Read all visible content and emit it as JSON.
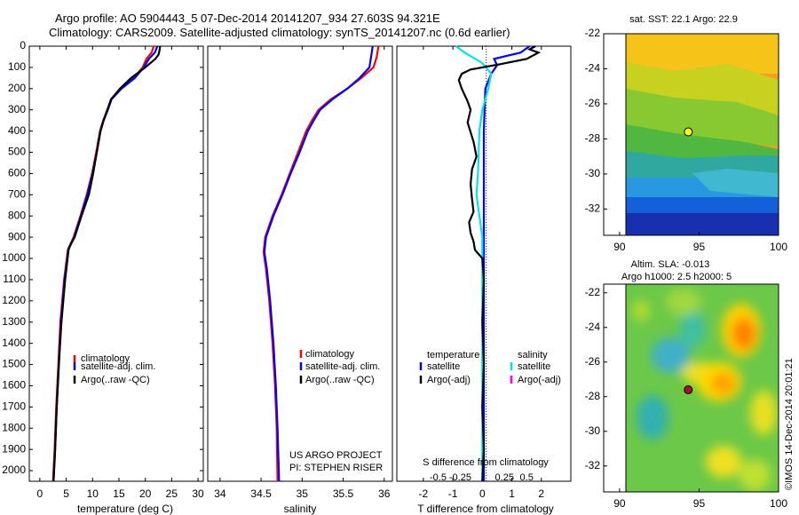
{
  "header": {
    "line1": "Argo profile: AO 5904443_5 07-Dec-2014 20141207_934 27.603S 94.321E",
    "line2": "Climatology: CARS2009. Satellite-adjusted climatology: synTS_20141207.nc (0.6d earlier)"
  },
  "colors": {
    "climatology": "#ff0000",
    "satellite": "#0000ff",
    "argo": "#000000",
    "t_satellite": "#0000ff",
    "t_argo": "#000000",
    "s_satellite": "#00e5e5",
    "s_argo": "#ff00ff"
  },
  "chart_data": [
    {
      "id": "temperature",
      "type": "line",
      "xlabel": "temperature (deg C)",
      "xlim": [
        -2,
        31
      ],
      "ylim": [
        2050,
        0
      ],
      "xticks": [
        0,
        5,
        10,
        15,
        20,
        25,
        30
      ],
      "yticks": [
        0,
        100,
        200,
        300,
        400,
        500,
        600,
        700,
        800,
        900,
        1000,
        1100,
        1200,
        1300,
        1400,
        1500,
        1600,
        1700,
        1800,
        1900,
        2000
      ],
      "legend": [
        "climatology",
        "satellite-adj. clim.",
        "Argo(..raw -QC)"
      ],
      "series": [
        {
          "name": "climatology",
          "color": "#ff0000",
          "points": [
            [
              21.6,
              0
            ],
            [
              21.2,
              30
            ],
            [
              20.2,
              60
            ],
            [
              19.5,
              100
            ],
            [
              17.8,
              150
            ],
            [
              15.3,
              200
            ],
            [
              13.5,
              250
            ],
            [
              12.8,
              300
            ],
            [
              12.0,
              350
            ],
            [
              11.4,
              400
            ],
            [
              10.7,
              500
            ],
            [
              9.9,
              600
            ],
            [
              8.9,
              700
            ],
            [
              7.7,
              800
            ],
            [
              6.4,
              900
            ],
            [
              5.3,
              960
            ],
            [
              4.6,
              1100
            ],
            [
              3.9,
              1300
            ],
            [
              3.5,
              1500
            ],
            [
              3.1,
              1700
            ],
            [
              2.8,
              1900
            ],
            [
              2.5,
              2050
            ]
          ]
        },
        {
          "name": "satellite-adj. clim.",
          "color": "#0000ff",
          "points": [
            [
              22.3,
              0
            ],
            [
              21.8,
              30
            ],
            [
              20.7,
              60
            ],
            [
              19.7,
              100
            ],
            [
              18.0,
              150
            ],
            [
              15.5,
              200
            ],
            [
              13.6,
              250
            ],
            [
              12.9,
              300
            ],
            [
              12.1,
              350
            ],
            [
              11.5,
              400
            ],
            [
              10.8,
              500
            ],
            [
              10.0,
              600
            ],
            [
              9.0,
              700
            ],
            [
              7.8,
              800
            ],
            [
              6.5,
              900
            ],
            [
              5.4,
              960
            ],
            [
              4.7,
              1100
            ],
            [
              4.0,
              1300
            ],
            [
              3.6,
              1500
            ],
            [
              3.2,
              1700
            ],
            [
              2.9,
              1900
            ],
            [
              2.6,
              2050
            ]
          ]
        },
        {
          "name": "Argo(..raw -QC)",
          "color": "#000000",
          "points": [
            [
              22.8,
              0
            ],
            [
              22.7,
              20
            ],
            [
              22.5,
              40
            ],
            [
              21.9,
              60
            ],
            [
              20.0,
              100
            ],
            [
              17.3,
              150
            ],
            [
              15.2,
              200
            ],
            [
              13.5,
              250
            ],
            [
              12.8,
              300
            ],
            [
              12.1,
              350
            ],
            [
              11.5,
              400
            ],
            [
              10.8,
              500
            ],
            [
              10.1,
              600
            ],
            [
              9.3,
              700
            ],
            [
              7.9,
              800
            ],
            [
              6.6,
              900
            ],
            [
              5.5,
              950
            ],
            [
              4.8,
              1100
            ],
            [
              4.1,
              1300
            ],
            [
              3.6,
              1500
            ],
            [
              3.2,
              1700
            ],
            [
              2.9,
              1900
            ],
            [
              2.6,
              2050
            ]
          ]
        }
      ]
    },
    {
      "id": "salinity",
      "type": "line",
      "xlabel": "salinity",
      "xlim": [
        33.85,
        36.1
      ],
      "ylim": [
        2050,
        0
      ],
      "xticks": [
        34,
        34.5,
        35,
        35.5,
        36
      ],
      "legend": [
        "climatology",
        "satellite-adj. clim.",
        "Argo(..raw -QC)"
      ],
      "series": [
        {
          "name": "climatology",
          "color": "#ff0000",
          "points": [
            [
              35.93,
              0
            ],
            [
              35.91,
              50
            ],
            [
              35.87,
              100
            ],
            [
              35.72,
              150
            ],
            [
              35.55,
              200
            ],
            [
              35.35,
              250
            ],
            [
              35.2,
              300
            ],
            [
              35.12,
              350
            ],
            [
              35.05,
              400
            ],
            [
              34.95,
              500
            ],
            [
              34.85,
              600
            ],
            [
              34.75,
              700
            ],
            [
              34.64,
              800
            ],
            [
              34.55,
              900
            ],
            [
              34.53,
              970
            ],
            [
              34.56,
              1050
            ],
            [
              34.6,
              1200
            ],
            [
              34.64,
              1400
            ],
            [
              34.67,
              1600
            ],
            [
              34.69,
              1800
            ],
            [
              34.7,
              2050
            ]
          ]
        },
        {
          "name": "satellite-adj. clim.",
          "color": "#0000ff",
          "points": [
            [
              35.86,
              0
            ],
            [
              35.84,
              50
            ],
            [
              35.82,
              100
            ],
            [
              35.7,
              150
            ],
            [
              35.55,
              200
            ],
            [
              35.37,
              250
            ],
            [
              35.22,
              300
            ],
            [
              35.14,
              350
            ],
            [
              35.07,
              400
            ],
            [
              34.97,
              500
            ],
            [
              34.86,
              600
            ],
            [
              34.76,
              700
            ],
            [
              34.65,
              800
            ],
            [
              34.56,
              900
            ],
            [
              34.54,
              970
            ],
            [
              34.57,
              1050
            ],
            [
              34.61,
              1200
            ],
            [
              34.65,
              1400
            ],
            [
              34.68,
              1600
            ],
            [
              34.7,
              1800
            ],
            [
              34.72,
              2050
            ]
          ]
        }
      ]
    },
    {
      "id": "difference",
      "type": "line",
      "xlabel": "T difference from climatology",
      "xlabel2": "S difference from climatology",
      "xlim": [
        -2.9,
        3.0
      ],
      "ylim": [
        2050,
        0
      ],
      "xticks": [
        -2,
        -1,
        0,
        1,
        2
      ],
      "s_ticks": [
        {
          "label": "-0.5",
          "value": -1.5
        },
        {
          "label": "-0.25",
          "value": -0.75
        },
        {
          "label": "0.25",
          "value": 0.75
        },
        {
          "label": "0.5",
          "value": 1.5
        }
      ],
      "legend_titles": [
        "temperature",
        "salinity"
      ],
      "legend": [
        "satellite",
        "Argo(-adj)",
        "satellite",
        "Argo(-adj)"
      ],
      "series": [
        {
          "name": "T satellite",
          "color": "#0000ff",
          "points": [
            [
              1.6,
              0
            ],
            [
              1.5,
              10
            ],
            [
              1.3,
              30
            ],
            [
              0.4,
              60
            ],
            [
              0.5,
              90
            ],
            [
              0.3,
              130
            ],
            [
              0.1,
              200
            ],
            [
              0.05,
              400
            ],
            [
              0.05,
              800
            ],
            [
              0.05,
              1200
            ],
            [
              0.05,
              1600
            ],
            [
              0.05,
              2050
            ]
          ]
        },
        {
          "name": "S satellite",
          "color": "#00e5e5",
          "points": [
            [
              -0.9,
              0
            ],
            [
              -0.6,
              30
            ],
            [
              0.0,
              80
            ],
            [
              0.3,
              130
            ],
            [
              0.2,
              200
            ],
            [
              0.0,
              300
            ],
            [
              -0.1,
              400
            ],
            [
              -0.15,
              600
            ],
            [
              -0.2,
              700
            ],
            [
              -0.1,
              800
            ],
            [
              0.0,
              900
            ],
            [
              0.0,
              1000
            ],
            [
              0.0,
              1400
            ],
            [
              0.0,
              2050
            ]
          ]
        },
        {
          "name": "T Argo(-adj)",
          "color": "#000000",
          "points": [
            [
              1.8,
              0
            ],
            [
              1.6,
              15
            ],
            [
              1.9,
              30
            ],
            [
              1.5,
              60
            ],
            [
              0.6,
              85
            ],
            [
              -0.4,
              110
            ],
            [
              -0.7,
              130
            ],
            [
              -0.8,
              160
            ],
            [
              -0.7,
              200
            ],
            [
              -0.5,
              260
            ],
            [
              -0.4,
              300
            ],
            [
              -0.5,
              360
            ],
            [
              -0.3,
              450
            ],
            [
              -0.2,
              520
            ],
            [
              -0.35,
              580
            ],
            [
              -0.4,
              650
            ],
            [
              -0.35,
              720
            ],
            [
              -0.3,
              780
            ],
            [
              -0.45,
              830
            ],
            [
              -0.4,
              880
            ],
            [
              -0.3,
              920
            ],
            [
              -0.25,
              960
            ],
            [
              0.0,
              1000
            ],
            [
              0.05,
              1100
            ],
            [
              0.0,
              1300
            ],
            [
              0.05,
              1500
            ],
            [
              0.0,
              1700
            ],
            [
              0.05,
              1900
            ],
            [
              0.0,
              2050
            ]
          ]
        }
      ]
    },
    {
      "id": "sst_map",
      "type": "heatmap",
      "title": "sat. SST: 22.1 Argo: 22.9",
      "xlim": [
        89,
        100
      ],
      "ylim": [
        -33.5,
        -22
      ],
      "xticks": [
        90,
        95,
        100
      ],
      "yticks": [
        -22,
        -24,
        -26,
        -28,
        -30,
        -32
      ],
      "marker": {
        "lon": 94.32,
        "lat": -27.6,
        "color": "#ffff00"
      }
    },
    {
      "id": "sla_map",
      "type": "heatmap",
      "title": "Altim. SLA: -0.013",
      "subtitle": "Argo h1000: 2.5 h2000: 5",
      "xlim": [
        89,
        100
      ],
      "ylim": [
        -33.5,
        -21.5
      ],
      "xticks": [
        90,
        95,
        100
      ],
      "yticks": [
        -22,
        -24,
        -26,
        -28,
        -30,
        -32
      ],
      "marker": {
        "lon": 94.32,
        "lat": -27.6,
        "color": "#aa1020"
      }
    }
  ],
  "credits": {
    "project": "US ARGO PROJECT",
    "pi": "PI: STEPHEN RISER",
    "imos": "©IMOS 14-Dec-2014 20:01:21"
  }
}
